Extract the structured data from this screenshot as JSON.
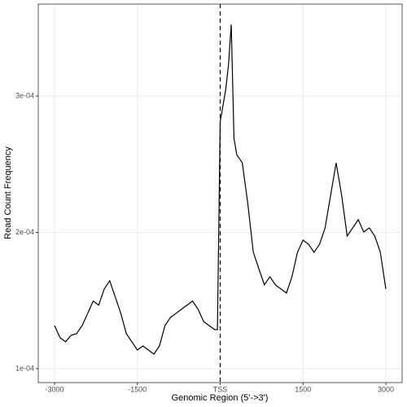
{
  "chart_data": {
    "type": "line",
    "x_label": "Genomic Region (5'->3')",
    "y_label": "Read Count Frequency",
    "x": [
      -3000,
      -2900,
      -2800,
      -2700,
      -2600,
      -2500,
      -2400,
      -2300,
      -2200,
      -2100,
      -2000,
      -1900,
      -1800,
      -1700,
      -1600,
      -1500,
      -1400,
      -1300,
      -1200,
      -1100,
      -1000,
      -900,
      -800,
      -700,
      -600,
      -500,
      -400,
      -300,
      -200,
      -100,
      -50,
      0,
      100,
      150,
      200,
      250,
      300,
      400,
      500,
      600,
      700,
      800,
      900,
      1000,
      1100,
      1200,
      1300,
      1400,
      1500,
      1600,
      1700,
      1800,
      1900,
      2000,
      2100,
      2200,
      2300,
      2400,
      2500,
      2600,
      2700,
      2800,
      2900,
      3000
    ],
    "series": [
      {
        "color": "#000000",
        "values": [
          0.0001316,
          0.0001227,
          0.0001197,
          0.0001245,
          0.0001257,
          0.0001316,
          0.0001406,
          0.0001496,
          0.0001466,
          0.0001585,
          0.0001645,
          0.0001525,
          0.0001406,
          0.0001257,
          0.0001197,
          0.0001137,
          0.0001167,
          0.0001137,
          0.0001107,
          0.0001167,
          0.0001316,
          0.0001376,
          0.0001406,
          0.0001436,
          0.0001466,
          0.0001496,
          0.0001436,
          0.0001346,
          0.0001316,
          0.0001287,
          0.0001287,
          0.0002809,
          0.0003048,
          0.0003227,
          0.0003525,
          0.000269,
          0.000257,
          0.000251,
          0.0002212,
          0.0001854,
          0.0001734,
          0.0001615,
          0.0001675,
          0.0001615,
          0.0001585,
          0.0001555,
          0.0001675,
          0.0001854,
          0.0001943,
          0.0001913,
          0.0001854,
          0.0001913,
          0.0002033,
          0.0002272,
          0.000251,
          0.0002272,
          0.0001973,
          0.0002033,
          0.0002093,
          0.0002003,
          0.0002033,
          0.0001973,
          0.0001854,
          0.0001585
        ]
      }
    ],
    "vline": 0,
    "xlim": [
      -3295,
      3295
    ],
    "ylim": [
      8.98e-05,
      0.0003675
    ],
    "xticks": [
      -3000,
      -1500,
      {
        "value": 0,
        "label": "TSS"
      },
      1500,
      3000
    ],
    "yticks": [
      {
        "value": 0.0001,
        "label": "1e-04"
      },
      {
        "value": 0.0002,
        "label": "2e-04"
      },
      {
        "value": 0.0003,
        "label": "3e-04"
      }
    ],
    "grid": true
  }
}
